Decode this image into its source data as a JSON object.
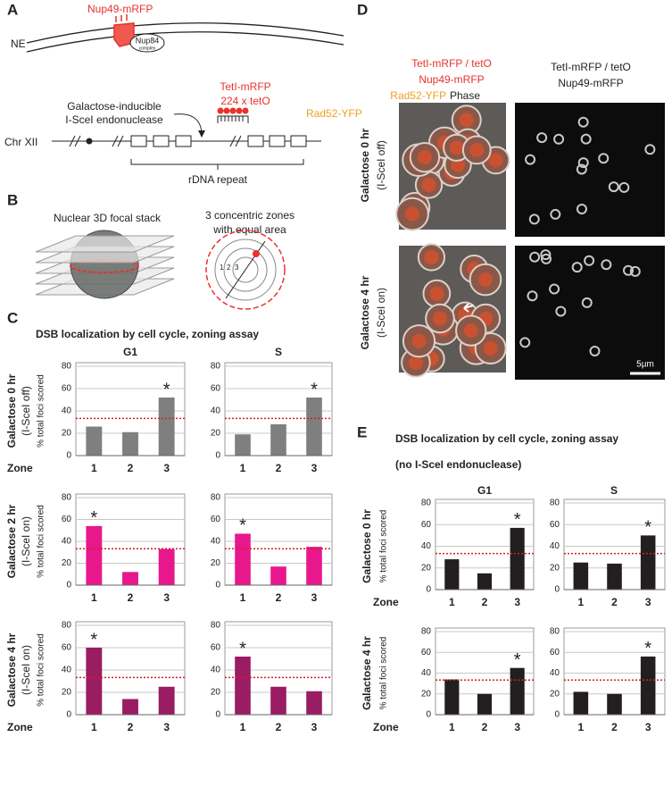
{
  "panel_labels": [
    "A",
    "B",
    "C",
    "D",
    "E"
  ],
  "diagram_a": {
    "ne": "NE",
    "nup49": "Nup49-mRFP",
    "nup84": "Nup84",
    "nup84_sub": "complex",
    "teti": "TetI-mRFP",
    "teto": "224 x tetO",
    "inducible_1": "Galactose-inducible",
    "inducible_2": "I-SceI endonuclease",
    "rad52": "Rad52-YFP",
    "chr": "Chr XII",
    "rdna": "rDNA repeat"
  },
  "diagram_b": {
    "stack": "Nuclear 3D focal stack",
    "zones_1": "3 concentric zones",
    "zones_2": "with equal area",
    "zone_numbers": [
      "1",
      "2",
      "3"
    ]
  },
  "panel_c": {
    "title": "DSB localization by cell cycle, zoning assay",
    "columns": [
      "G1",
      "S"
    ],
    "rows": [
      {
        "label": "Galactose 0 hr",
        "condition": "(I-SceI off)",
        "y_label": "% total foci scored",
        "zone_label": "Zone"
      },
      {
        "label": "Galactose 2 hr",
        "condition": "(I-SceI on)",
        "y_label": "% total foci scored"
      },
      {
        "label": "Galactose 4 hr",
        "condition": "(I-SceI on)",
        "y_label": "% total foci scored",
        "zone_label": "Zone"
      }
    ]
  },
  "panel_d": {
    "left_header": [
      "TetI-mRFP / tetO",
      "Nup49-mRFP"
    ],
    "left_header_3a": "Rad52-YFP",
    "left_header_3b": "Phase",
    "right_header": [
      "TetI-mRFP / tetO",
      "Nup49-mRFP"
    ],
    "rows": [
      {
        "label": "Galactose 0 hr",
        "condition": "(I-SceI off)"
      },
      {
        "label": "Galactose 4 hr",
        "condition": "(I-SceI on)"
      }
    ],
    "scale": "5µm"
  },
  "panel_e": {
    "title": "DSB localization by cell cycle, zoning assay",
    "subtitle": "(no I-SceI endonuclease)",
    "columns": [
      "G1",
      "S"
    ],
    "rows": [
      {
        "label": "Galactose 0 hr",
        "y_label": "% total foci scored",
        "zone_label": "Zone"
      },
      {
        "label": "Galactose 4 hr",
        "y_label": "% total foci scored",
        "zone_label": "Zone"
      }
    ]
  },
  "chart_data": [
    {
      "type": "bar",
      "categories": [
        "1",
        "2",
        "3"
      ],
      "values": [
        26,
        21,
        52
      ],
      "color": "#7f7f7f",
      "ylim": [
        0,
        80
      ],
      "yticks": [
        0,
        20,
        40,
        60,
        80
      ],
      "grid": true,
      "reference_line": 33.3,
      "annotations": [
        {
          "x": "3",
          "text": "*"
        }
      ]
    },
    {
      "type": "bar",
      "categories": [
        "1",
        "2",
        "3"
      ],
      "values": [
        19,
        28,
        52
      ],
      "color": "#7f7f7f",
      "ylim": [
        0,
        80
      ],
      "yticks": [
        0,
        20,
        40,
        60,
        80
      ],
      "grid": true,
      "reference_line": 33.3,
      "annotations": [
        {
          "x": "3",
          "text": "*"
        }
      ]
    },
    {
      "type": "bar",
      "categories": [
        "1",
        "2",
        "3"
      ],
      "values": [
        54,
        12,
        33
      ],
      "color": "#e8188c",
      "ylim": [
        0,
        80
      ],
      "yticks": [
        0,
        20,
        40,
        60,
        80
      ],
      "grid": true,
      "reference_line": 33.3,
      "annotations": [
        {
          "x": "1",
          "text": "*"
        }
      ]
    },
    {
      "type": "bar",
      "categories": [
        "1",
        "2",
        "3"
      ],
      "values": [
        47,
        17,
        35
      ],
      "color": "#e8188c",
      "ylim": [
        0,
        80
      ],
      "yticks": [
        0,
        20,
        40,
        60,
        80
      ],
      "grid": true,
      "reference_line": 33.3,
      "annotations": [
        {
          "x": "1",
          "text": "*"
        }
      ]
    },
    {
      "type": "bar",
      "categories": [
        "1",
        "2",
        "3"
      ],
      "values": [
        60,
        14,
        25
      ],
      "color": "#9a1c62",
      "ylim": [
        0,
        80
      ],
      "yticks": [
        0,
        20,
        40,
        60,
        80
      ],
      "grid": true,
      "reference_line": 33.3,
      "annotations": [
        {
          "x": "1",
          "text": "*"
        }
      ]
    },
    {
      "type": "bar",
      "categories": [
        "1",
        "2",
        "3"
      ],
      "values": [
        52,
        25,
        21
      ],
      "color": "#9a1c62",
      "ylim": [
        0,
        80
      ],
      "yticks": [
        0,
        20,
        40,
        60,
        80
      ],
      "grid": true,
      "reference_line": 33.3,
      "annotations": [
        {
          "x": "1",
          "text": "*"
        }
      ]
    },
    {
      "type": "bar",
      "categories": [
        "1",
        "2",
        "3"
      ],
      "values": [
        28,
        15,
        57
      ],
      "color": "#231f20",
      "ylim": [
        0,
        80
      ],
      "yticks": [
        0,
        20,
        40,
        60,
        80
      ],
      "grid": true,
      "reference_line": 33.3,
      "annotations": [
        {
          "x": "3",
          "text": "*"
        }
      ]
    },
    {
      "type": "bar",
      "categories": [
        "1",
        "2",
        "3"
      ],
      "values": [
        25,
        24,
        50
      ],
      "color": "#231f20",
      "ylim": [
        0,
        80
      ],
      "yticks": [
        0,
        20,
        40,
        60,
        80
      ],
      "grid": true,
      "reference_line": 33.3,
      "annotations": [
        {
          "x": "3",
          "text": "*"
        }
      ]
    },
    {
      "type": "bar",
      "categories": [
        "1",
        "2",
        "3"
      ],
      "values": [
        34,
        20,
        45
      ],
      "color": "#231f20",
      "ylim": [
        0,
        80
      ],
      "yticks": [
        0,
        20,
        40,
        60,
        80
      ],
      "grid": true,
      "reference_line": 33.3,
      "annotations": [
        {
          "x": "3",
          "text": "*"
        }
      ]
    },
    {
      "type": "bar",
      "categories": [
        "1",
        "2",
        "3"
      ],
      "values": [
        22,
        20,
        56
      ],
      "color": "#231f20",
      "ylim": [
        0,
        80
      ],
      "yticks": [
        0,
        20,
        40,
        60,
        80
      ],
      "grid": true,
      "reference_line": 33.3,
      "annotations": [
        {
          "x": "3",
          "text": "*"
        }
      ]
    }
  ]
}
